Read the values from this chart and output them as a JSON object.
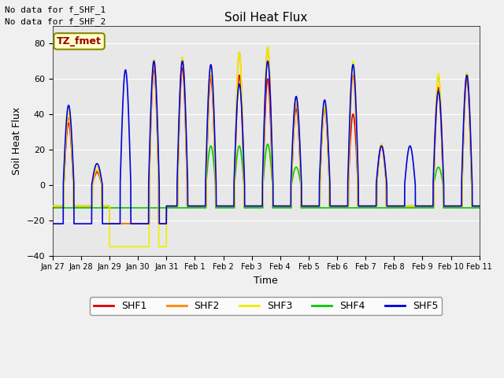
{
  "title": "Soil Heat Flux",
  "ylabel": "Soil Heat Flux",
  "xlabel": "Time",
  "annotation_lines": [
    "No data for f_SHF_1",
    "No data for f_SHF_2"
  ],
  "tz_label": "TZ_fmet",
  "ylim": [
    -40,
    90
  ],
  "yticks": [
    -40,
    -20,
    0,
    20,
    40,
    60,
    80
  ],
  "plot_background": "#e8e8e8",
  "fig_background": "#f0f0f0",
  "colors": {
    "SHF1": "#dd0000",
    "SHF2": "#ff8800",
    "SHF3": "#eeee00",
    "SHF4": "#00cc00",
    "SHF5": "#0000dd"
  },
  "x_tick_labels": [
    "Jan 27",
    "Jan 28",
    "Jan 29",
    "Jan 30",
    "Jan 31",
    "Feb 1",
    "Feb 2",
    "Feb 3",
    "Feb 4",
    "Feb 5",
    "Feb 6",
    "Feb 7",
    "Feb 8",
    "Feb 9",
    "Feb 10",
    "Feb 11"
  ],
  "legend_entries": [
    "SHF1",
    "SHF2",
    "SHF3",
    "SHF4",
    "SHF5"
  ],
  "figsize": [
    6.4,
    4.8
  ],
  "dpi": 100
}
